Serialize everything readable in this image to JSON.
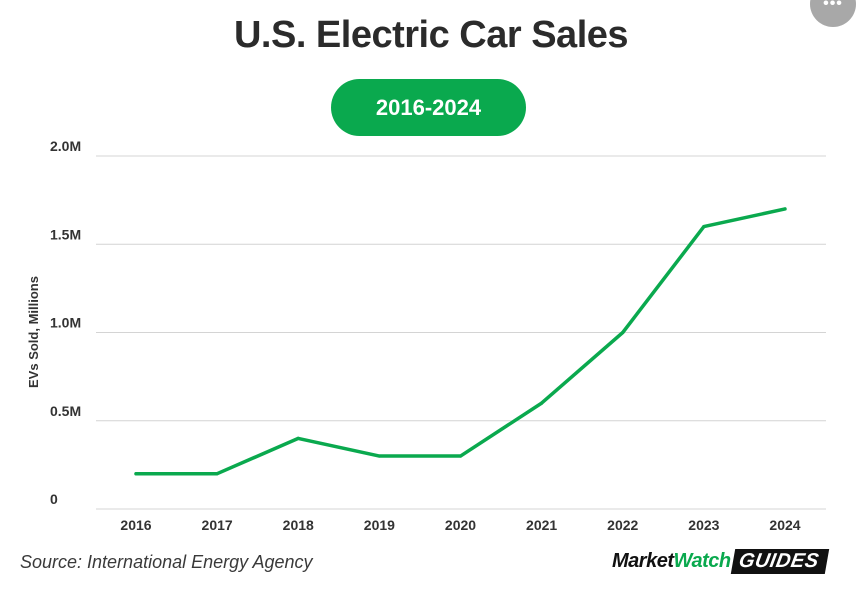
{
  "header": {
    "title": "U.S. Electric Car Sales",
    "range_badge": "2016-2024",
    "more_icon": "more-horizontal-icon"
  },
  "chart_data": {
    "type": "line",
    "title": "U.S. Electric Car Sales",
    "subtitle": "2016-2024",
    "xlabel": "",
    "ylabel": "EVs Sold, Millions",
    "categories": [
      "2016",
      "2017",
      "2018",
      "2019",
      "2020",
      "2021",
      "2022",
      "2023",
      "2024"
    ],
    "series": [
      {
        "name": "EVs Sold",
        "values": [
          0.2,
          0.2,
          0.4,
          0.3,
          0.3,
          0.6,
          1.0,
          1.6,
          1.7
        ]
      }
    ],
    "ylim": [
      0,
      2.0
    ],
    "yticks": [
      0,
      0.5,
      1.0,
      1.5,
      2.0
    ],
    "ytick_labels": [
      "0",
      "0.5M",
      "1.0M",
      "1.5M",
      "2.0M"
    ],
    "grid": true,
    "line_color": "#0aa94e"
  },
  "footer": {
    "source": "Source: International Energy Agency",
    "brand_market": "Market",
    "brand_watch": "Watch",
    "brand_guides": "GUIDES"
  }
}
